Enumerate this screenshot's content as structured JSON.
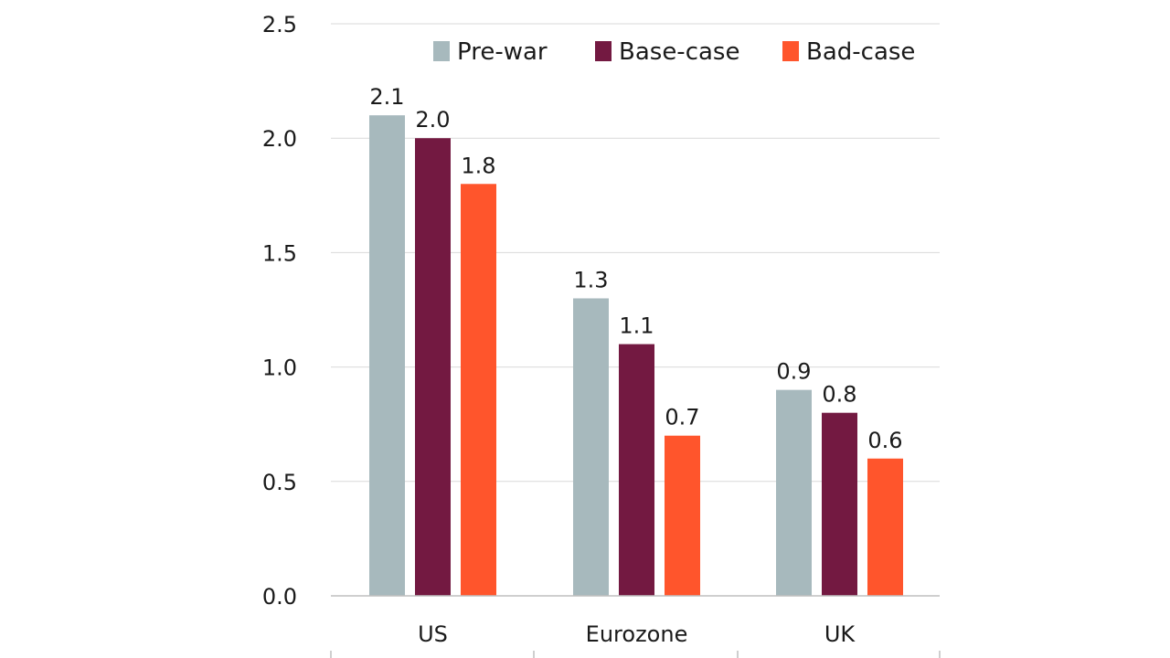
{
  "chart_data": {
    "type": "bar",
    "title": "",
    "xlabel": "",
    "ylabel": "",
    "categories": [
      "US",
      "Eurozone",
      "UK"
    ],
    "series": [
      {
        "name": "Pre-war",
        "color": "#a7b9bd",
        "values": [
          2.1,
          1.3,
          0.9
        ],
        "labels": [
          "2.1",
          "1.3",
          "0.9"
        ]
      },
      {
        "name": "Base-case",
        "color": "#731941",
        "values": [
          2.0,
          1.1,
          0.8
        ],
        "labels": [
          "2.0",
          "1.1",
          "0.8"
        ]
      },
      {
        "name": "Bad-case",
        "color": "#ff552c",
        "values": [
          1.8,
          0.7,
          0.6
        ],
        "labels": [
          "1.8",
          "0.7",
          "0.6"
        ]
      }
    ],
    "ylim": [
      0,
      2.5
    ],
    "yticks": [
      "0.0",
      "0.5",
      "1.0",
      "1.5",
      "2.0",
      "2.5"
    ],
    "grid": true,
    "legend_position": "top-right"
  }
}
